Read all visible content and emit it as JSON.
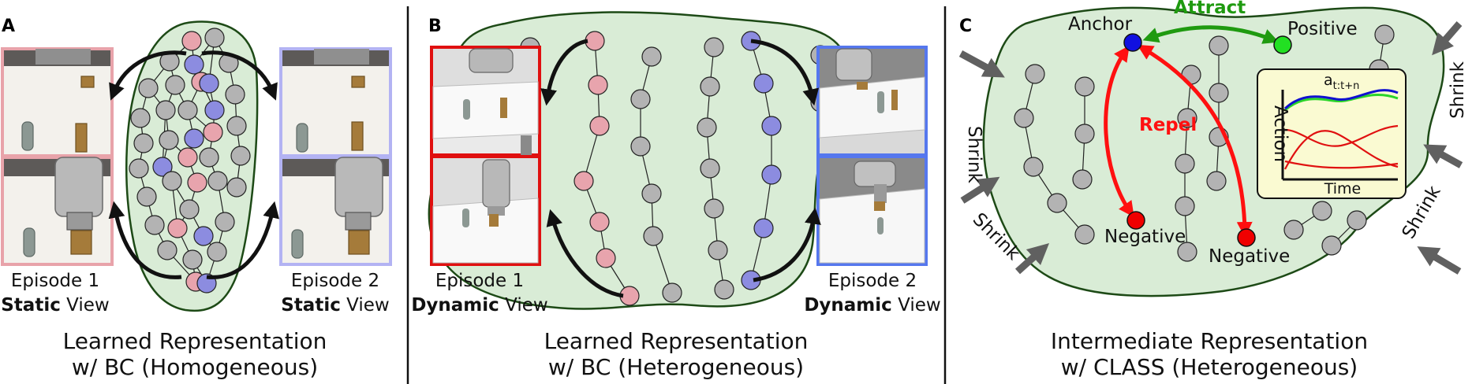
{
  "colors": {
    "blob_fill": "#d9ecd6",
    "blob_stroke": "#1d4a16",
    "node_gray": "#b3b3b3",
    "node_pink": "#e8a4ad",
    "node_blue": "#8c8ce0",
    "anchor_blue": "#1010e0",
    "negative_red": "#f00000",
    "positive_green": "#22e022",
    "attract_green": "#1f9a10",
    "repel_red": "#ff1010",
    "frame_pink": "#e8a3aa",
    "frame_lavender": "#b3b3f3",
    "frame_red": "#e01010",
    "frame_blue": "#5577ee",
    "arrow_gray": "#606060",
    "inset_bg": "#fafad2"
  },
  "panel_a": {
    "letter": "A",
    "episode1": {
      "title": "Episode 1",
      "bold": "Static",
      "rest": " View"
    },
    "episode2": {
      "title": "Episode 2",
      "bold": "Static",
      "rest": " View"
    },
    "caption_line1": "Learned Representation",
    "caption_line2": "w/ BC (Homogeneous)"
  },
  "panel_b": {
    "letter": "B",
    "episode1": {
      "title": "Episode 1",
      "bold": "Dynamic",
      "rest": " View"
    },
    "episode2": {
      "title": "Episode 2",
      "bold": "Dynamic",
      "rest": " View"
    },
    "caption_line1": "Learned Representation",
    "caption_line2": "w/ BC (Heterogeneous)"
  },
  "panel_c": {
    "letter": "C",
    "anchor": "Anchor",
    "positive": "Positive",
    "negative": "Negative",
    "attract": "Attract",
    "repel": "Repel",
    "shrink": "Shrink",
    "inset": {
      "title_base": "a",
      "title_sub": "t:t+n",
      "ylabel": "Action",
      "xlabel": "Time"
    },
    "caption_line1": "Intermediate Representation",
    "caption_line2": "w/ CLASS (Heterogeneous)"
  }
}
